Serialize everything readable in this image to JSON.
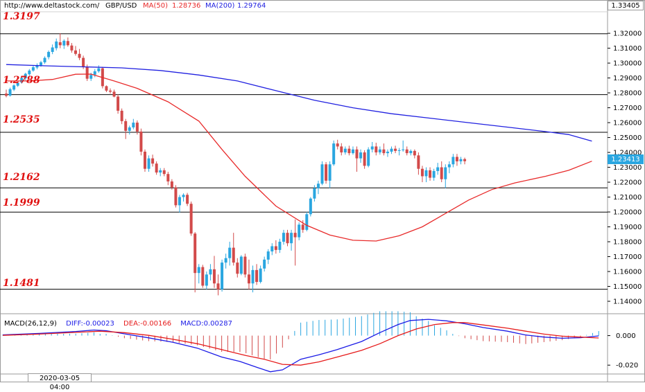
{
  "header": {
    "site": "http://www.deltastock.com/",
    "symbol": "GBP/USD",
    "ma50_label": "MA(50)",
    "ma50_value": "1.28736",
    "ma200_label": "MA(200)",
    "ma200_value": "1.29764",
    "top_price": "1.33405",
    "last_price": "1.23413"
  },
  "levels": [
    "1.3197",
    "1.2788",
    "1.2535",
    "1.2162",
    "1.1999",
    "1.1481"
  ],
  "macd_header": {
    "label": "MACD(26,12,9)",
    "diff": "DIFF:-0.00023",
    "dea": "DEA:-0.00166",
    "macd": "MACD:0.00287"
  },
  "cursor_date": "2020-03-05 04:00",
  "colors": {
    "up": "#2aa6e0",
    "down": "#d24a4a",
    "ma50": "#e82a2a",
    "ma200": "#2020e0",
    "diff": "#1a1ae6",
    "dea": "#e61a1a",
    "level_text": "#e01010"
  },
  "chart_data": [
    {
      "type": "candlestick",
      "title": "GBP/USD",
      "ylim": [
        1.1335,
        1.334
      ],
      "y_ticks": [
        "1.32000",
        "1.31000",
        "1.30000",
        "1.29000",
        "1.28000",
        "1.27000",
        "1.26000",
        "1.25000",
        "1.24000",
        "1.23000",
        "1.22000",
        "1.21000",
        "1.20000",
        "1.19000",
        "1.18000",
        "1.17000",
        "1.16000",
        "1.15000",
        "1.14000"
      ],
      "horizontal_levels": [
        1.3197,
        1.2788,
        1.2535,
        1.2162,
        1.1999,
        1.1481
      ],
      "ohlc": [
        [
          1.2795,
          1.2822,
          1.277,
          1.278
        ],
        [
          1.2782,
          1.2835,
          1.2775,
          1.2825
        ],
        [
          1.2822,
          1.2858,
          1.2812,
          1.285
        ],
        [
          1.2848,
          1.2875,
          1.284,
          1.2868
        ],
        [
          1.287,
          1.2908,
          1.2862,
          1.29
        ],
        [
          1.2898,
          1.2935,
          1.2885,
          1.2928
        ],
        [
          1.2925,
          1.296,
          1.2915,
          1.295
        ],
        [
          1.295,
          1.2982,
          1.2942,
          1.2972
        ],
        [
          1.297,
          1.2998,
          1.2958,
          1.2985
        ],
        [
          1.2985,
          1.3015,
          1.2975,
          1.3005
        ],
        [
          1.3005,
          1.3045,
          1.2995,
          1.3035
        ],
        [
          1.304,
          1.3085,
          1.3025,
          1.3075
        ],
        [
          1.3075,
          1.3125,
          1.306,
          1.3105
        ],
        [
          1.31,
          1.3165,
          1.3085,
          1.3145
        ],
        [
          1.314,
          1.32,
          1.31,
          1.312
        ],
        [
          1.3118,
          1.316,
          1.3095,
          1.315
        ],
        [
          1.3148,
          1.3172,
          1.311,
          1.312
        ],
        [
          1.3118,
          1.3135,
          1.307,
          1.3085
        ],
        [
          1.3085,
          1.3115,
          1.305,
          1.3062
        ],
        [
          1.3062,
          1.3095,
          1.302,
          1.3035
        ],
        [
          1.3035,
          1.305,
          1.296,
          1.2975
        ],
        [
          1.2975,
          1.299,
          1.288,
          1.2895
        ],
        [
          1.2895,
          1.2935,
          1.288,
          1.292
        ],
        [
          1.2922,
          1.296,
          1.2905,
          1.2945
        ],
        [
          1.2945,
          1.2985,
          1.2935,
          1.2965
        ],
        [
          1.2965,
          1.2975,
          1.283,
          1.2845
        ],
        [
          1.2845,
          1.285,
          1.2805,
          1.2815
        ],
        [
          1.2815,
          1.283,
          1.2795,
          1.2808
        ],
        [
          1.2808,
          1.2822,
          1.277,
          1.2775
        ],
        [
          1.2775,
          1.279,
          1.266,
          1.268
        ],
        [
          1.268,
          1.2695,
          1.259,
          1.261
        ],
        [
          1.261,
          1.2625,
          1.249,
          1.2545
        ],
        [
          1.2545,
          1.258,
          1.252,
          1.2568
        ],
        [
          1.2568,
          1.2625,
          1.2555,
          1.26
        ],
        [
          1.26,
          1.2615,
          1.252,
          1.254
        ],
        [
          1.254,
          1.256,
          1.238,
          1.2405
        ],
        [
          1.2405,
          1.242,
          1.227,
          1.229
        ],
        [
          1.229,
          1.238,
          1.227,
          1.236
        ],
        [
          1.236,
          1.2385,
          1.2305,
          1.2325
        ],
        [
          1.2325,
          1.234,
          1.225,
          1.2265
        ],
        [
          1.2265,
          1.2295,
          1.224,
          1.228
        ],
        [
          1.228,
          1.2295,
          1.224,
          1.2255
        ],
        [
          1.2255,
          1.227,
          1.218,
          1.2205
        ],
        [
          1.2205,
          1.222,
          1.215,
          1.2165
        ],
        [
          1.2165,
          1.218,
          1.203,
          1.2045
        ],
        [
          1.2045,
          1.2115,
          1.1995,
          1.21
        ],
        [
          1.21,
          1.2125,
          1.207,
          1.2115
        ],
        [
          1.2115,
          1.2128,
          1.204,
          1.2055
        ],
        [
          1.2055,
          1.207,
          1.184,
          1.1855
        ],
        [
          1.1855,
          1.1865,
          1.146,
          1.159
        ],
        [
          1.159,
          1.165,
          1.152,
          1.163
        ],
        [
          1.163,
          1.1645,
          1.149,
          1.1505
        ],
        [
          1.1505,
          1.16,
          1.148,
          1.158
        ],
        [
          1.158,
          1.165,
          1.154,
          1.1615
        ],
        [
          1.1615,
          1.1705,
          1.149,
          1.152
        ],
        [
          1.152,
          1.158,
          1.144,
          1.148
        ],
        [
          1.148,
          1.168,
          1.1465,
          1.166
        ],
        [
          1.166,
          1.172,
          1.162,
          1.169
        ],
        [
          1.169,
          1.18,
          1.164,
          1.176
        ],
        [
          1.176,
          1.186,
          1.164,
          1.166
        ],
        [
          1.166,
          1.169,
          1.156,
          1.1585
        ],
        [
          1.1585,
          1.171,
          1.1575,
          1.17
        ],
        [
          1.17,
          1.172,
          1.156,
          1.158
        ],
        [
          1.158,
          1.168,
          1.148,
          1.152
        ],
        [
          1.152,
          1.164,
          1.146,
          1.161
        ],
        [
          1.161,
          1.165,
          1.151,
          1.153
        ],
        [
          1.153,
          1.164,
          1.152,
          1.162
        ],
        [
          1.162,
          1.17,
          1.16,
          1.168
        ],
        [
          1.168,
          1.175,
          1.165,
          1.1735
        ],
        [
          1.1735,
          1.179,
          1.171,
          1.177
        ],
        [
          1.177,
          1.181,
          1.172,
          1.1745
        ],
        [
          1.1745,
          1.182,
          1.1725,
          1.18
        ],
        [
          1.18,
          1.188,
          1.178,
          1.186
        ],
        [
          1.186,
          1.188,
          1.177,
          1.179
        ],
        [
          1.179,
          1.188,
          1.174,
          1.186
        ],
        [
          1.186,
          1.195,
          1.164,
          1.183
        ],
        [
          1.183,
          1.193,
          1.181,
          1.1915
        ],
        [
          1.1915,
          1.1945,
          1.186,
          1.188
        ],
        [
          1.188,
          1.2,
          1.187,
          1.1985
        ],
        [
          1.1985,
          1.21,
          1.197,
          1.209
        ],
        [
          1.209,
          1.218,
          1.207,
          1.216
        ],
        [
          1.216,
          1.221,
          1.212,
          1.219
        ],
        [
          1.219,
          1.234,
          1.218,
          1.232
        ],
        [
          1.232,
          1.2335,
          1.219,
          1.221
        ],
        [
          1.221,
          1.234,
          1.216,
          1.232
        ],
        [
          1.232,
          1.248,
          1.231,
          1.246
        ],
        [
          1.246,
          1.2485,
          1.242,
          1.244
        ],
        [
          1.244,
          1.2462,
          1.238,
          1.24
        ],
        [
          1.24,
          1.244,
          1.2385,
          1.2425
        ],
        [
          1.2425,
          1.2445,
          1.238,
          1.2395
        ],
        [
          1.2395,
          1.244,
          1.2385,
          1.242
        ],
        [
          1.242,
          1.244,
          1.227,
          1.236
        ],
        [
          1.236,
          1.242,
          1.233,
          1.24
        ],
        [
          1.24,
          1.2415,
          1.229,
          1.231
        ],
        [
          1.231,
          1.2435,
          1.23,
          1.242
        ],
        [
          1.242,
          1.247,
          1.24,
          1.244
        ],
        [
          1.244,
          1.2465,
          1.238,
          1.24
        ],
        [
          1.24,
          1.244,
          1.2385,
          1.242
        ],
        [
          1.242,
          1.246,
          1.238,
          1.2395
        ],
        [
          1.2395,
          1.242,
          1.237,
          1.2405
        ],
        [
          1.2405,
          1.244,
          1.239,
          1.2425
        ],
        [
          1.2425,
          1.2445,
          1.2395,
          1.241
        ],
        [
          1.241,
          1.243,
          1.238,
          1.2415
        ],
        [
          1.2415,
          1.248,
          1.2405,
          1.242
        ],
        [
          1.242,
          1.244,
          1.238,
          1.2395
        ],
        [
          1.2395,
          1.242,
          1.238,
          1.241
        ],
        [
          1.241,
          1.242,
          1.236,
          1.238
        ],
        [
          1.238,
          1.24,
          1.225,
          1.229
        ],
        [
          1.229,
          1.231,
          1.22,
          1.224
        ],
        [
          1.224,
          1.23,
          1.22,
          1.228
        ],
        [
          1.228,
          1.23,
          1.221,
          1.223
        ],
        [
          1.223,
          1.229,
          1.221,
          1.2275
        ],
        [
          1.2275,
          1.233,
          1.225,
          1.23
        ],
        [
          1.23,
          1.234,
          1.22,
          1.222
        ],
        [
          1.222,
          1.232,
          1.216,
          1.23
        ],
        [
          1.23,
          1.234,
          1.226,
          1.232
        ],
        [
          1.232,
          1.239,
          1.23,
          1.237
        ],
        [
          1.237,
          1.239,
          1.231,
          1.234
        ],
        [
          1.234,
          1.237,
          1.232,
          1.2355
        ],
        [
          1.2355,
          1.2365,
          1.232,
          1.2341
        ]
      ],
      "ma50": [
        [
          0,
          1.288
        ],
        [
          6,
          1.288
        ],
        [
          12,
          1.289
        ],
        [
          18,
          1.2925
        ],
        [
          22,
          1.2926
        ],
        [
          28,
          1.288
        ],
        [
          34,
          1.283
        ],
        [
          42,
          1.274
        ],
        [
          50,
          1.261
        ],
        [
          56,
          1.242
        ],
        [
          62,
          1.224
        ],
        [
          70,
          1.204
        ],
        [
          78,
          1.191
        ],
        [
          84,
          1.1845
        ],
        [
          90,
          1.181
        ],
        [
          96,
          1.1805
        ],
        [
          102,
          1.184
        ],
        [
          108,
          1.19
        ],
        [
          114,
          1.199
        ],
        [
          120,
          1.208
        ],
        [
          126,
          1.215
        ],
        [
          132,
          1.2195
        ],
        [
          140,
          1.224
        ],
        [
          146,
          1.228
        ],
        [
          152,
          1.2341
        ]
      ],
      "ma200": [
        [
          0,
          1.299
        ],
        [
          10,
          1.2982
        ],
        [
          20,
          1.2975
        ],
        [
          30,
          1.2968
        ],
        [
          40,
          1.295
        ],
        [
          50,
          1.292
        ],
        [
          60,
          1.288
        ],
        [
          70,
          1.2815
        ],
        [
          80,
          1.275
        ],
        [
          90,
          1.27
        ],
        [
          100,
          1.266
        ],
        [
          110,
          1.263
        ],
        [
          120,
          1.26
        ],
        [
          130,
          1.257
        ],
        [
          140,
          1.254
        ],
        [
          146,
          1.252
        ],
        [
          152,
          1.2476
        ]
      ]
    },
    {
      "type": "macd",
      "title": "MACD(26,12,9)",
      "ylim": [
        -0.026,
        0.012
      ],
      "y_ticks": [
        "0.000",
        "-0.020"
      ],
      "diff": [
        [
          0,
          0.0005
        ],
        [
          12,
          0.0015
        ],
        [
          24,
          0.0028
        ],
        [
          30,
          0.0038
        ],
        [
          34,
          0.0033
        ],
        [
          40,
          0.0012
        ],
        [
          48,
          -0.0015
        ],
        [
          56,
          -0.0045
        ],
        [
          64,
          -0.0085
        ],
        [
          72,
          -0.0145
        ],
        [
          78,
          -0.0175
        ],
        [
          84,
          -0.0218
        ],
        [
          88,
          -0.0245
        ],
        [
          92,
          -0.0232
        ],
        [
          98,
          -0.016
        ],
        [
          104,
          -0.013
        ],
        [
          110,
          -0.0095
        ],
        [
          118,
          -0.004
        ],
        [
          124,
          0.002
        ],
        [
          130,
          0.0075
        ],
        [
          134,
          0.0102
        ],
        [
          140,
          0.011
        ],
        [
          146,
          0.01
        ],
        [
          152,
          0.008
        ],
        [
          158,
          0.0055
        ],
        [
          166,
          0.003
        ],
        [
          172,
          0.0004
        ],
        [
          178,
          -0.001
        ],
        [
          184,
          -0.0018
        ],
        [
          190,
          -0.0014
        ],
        [
          196,
          -0.0002
        ]
      ],
      "dea": [
        [
          0,
          0.0002
        ],
        [
          12,
          0.001
        ],
        [
          24,
          0.0022
        ],
        [
          32,
          0.003
        ],
        [
          40,
          0.002
        ],
        [
          48,
          0.0002
        ],
        [
          56,
          -0.0025
        ],
        [
          64,
          -0.0055
        ],
        [
          72,
          -0.0095
        ],
        [
          80,
          -0.0135
        ],
        [
          86,
          -0.016
        ],
        [
          92,
          -0.0195
        ],
        [
          98,
          -0.02
        ],
        [
          104,
          -0.0178
        ],
        [
          110,
          -0.0145
        ],
        [
          118,
          -0.01
        ],
        [
          124,
          -0.0055
        ],
        [
          130,
          0.0
        ],
        [
          136,
          0.0045
        ],
        [
          142,
          0.0075
        ],
        [
          148,
          0.0088
        ],
        [
          152,
          0.0088
        ],
        [
          158,
          0.0072
        ],
        [
          166,
          0.005
        ],
        [
          172,
          0.003
        ],
        [
          178,
          0.001
        ],
        [
          184,
          -0.0004
        ],
        [
          190,
          -0.001
        ],
        [
          196,
          -0.0016
        ]
      ],
      "hist_x_range": [
        0,
        196
      ]
    }
  ]
}
